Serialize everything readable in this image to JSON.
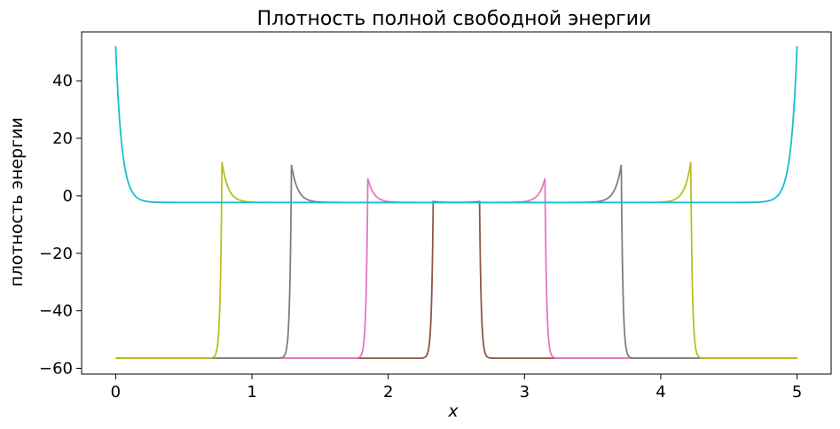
{
  "chart_data": {
    "type": "line",
    "title": "Плотность полной свободной энергии",
    "xlabel": "x",
    "ylabel": "плотность энергии",
    "xlim": [
      -0.25,
      5.25
    ],
    "ylim": [
      -62,
      57
    ],
    "x_ticks": [
      0,
      1,
      2,
      3,
      4,
      5
    ],
    "x_tick_labels": [
      "0",
      "1",
      "2",
      "3",
      "4",
      "5"
    ],
    "y_ticks": [
      -60,
      -40,
      -20,
      0,
      20,
      40
    ],
    "y_tick_labels": [
      "−60",
      "−40",
      "−20",
      "0",
      "20",
      "40"
    ],
    "grid": false,
    "legend": "none",
    "x_range": [
      0,
      5
    ],
    "baseline": -2.3,
    "trough": -56.5,
    "series": [
      {
        "color": "#8c564b",
        "wall_left": 2.33,
        "wall_right": 2.67,
        "peak": -2.0,
        "dip": -2.7
      },
      {
        "color": "#e377c2",
        "wall_left": 1.85,
        "wall_right": 3.15,
        "peak": 6.0,
        "dip": -2.5
      },
      {
        "color": "#7f7f7f",
        "wall_left": 1.29,
        "wall_right": 3.71,
        "peak": 10.8,
        "dip": -2.3
      },
      {
        "color": "#bcbd22",
        "wall_left": 0.78,
        "wall_right": 4.22,
        "peak": 11.8,
        "dip": -2.3
      },
      {
        "color": "#17becf",
        "wall_left": 0.0,
        "wall_right": 5.0,
        "peak": 52.0,
        "dip": -2.3
      }
    ]
  }
}
